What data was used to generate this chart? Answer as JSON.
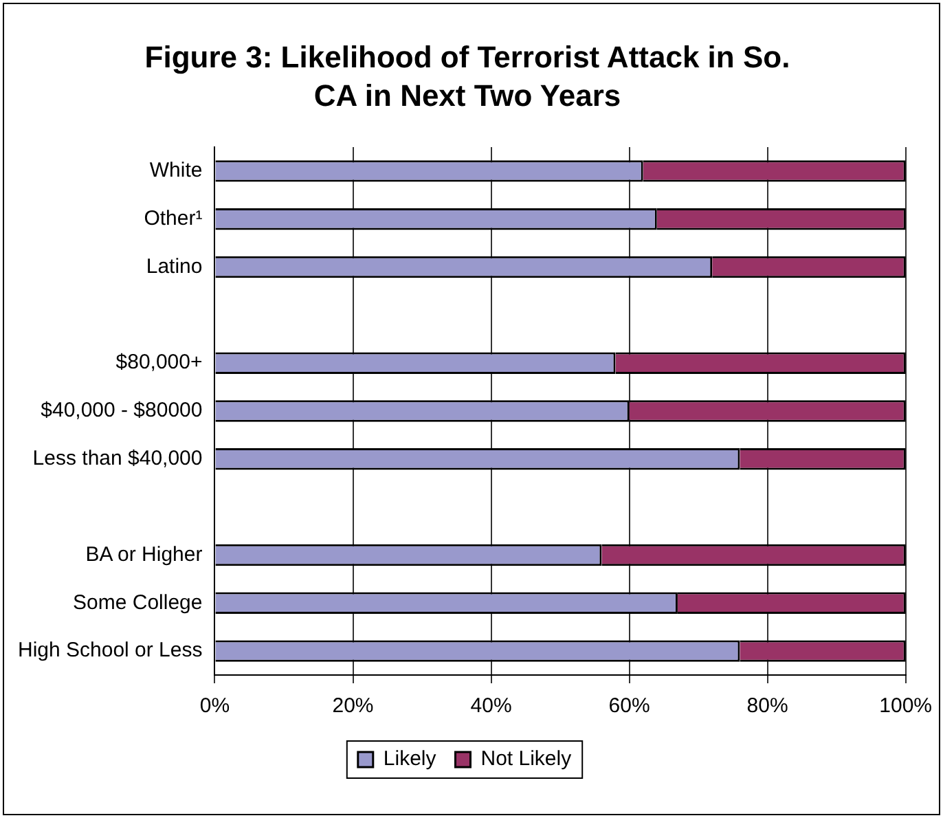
{
  "chart_data": {
    "type": "bar",
    "orientation": "horizontal",
    "stacked": true,
    "title": "Figure 3: Likelihood of Terrorist Attack in So. CA in Next Two Years",
    "categories": [
      "White",
      "Other¹",
      "Latino",
      null,
      "$80,000+",
      "$40,000 - $80000",
      "Less than $40,000",
      null,
      "BA or Higher",
      "Some College",
      "High School or Less"
    ],
    "series": [
      {
        "name": "Likely",
        "color": "#9999cc",
        "values": [
          62,
          64,
          72,
          null,
          58,
          60,
          76,
          null,
          56,
          67,
          76
        ]
      },
      {
        "name": "Not Likely",
        "color": "#993366",
        "values": [
          38,
          36,
          28,
          null,
          42,
          40,
          24,
          null,
          44,
          33,
          24
        ]
      }
    ],
    "xlim": [
      0,
      100
    ],
    "xticks": [
      {
        "value": 0,
        "label": "0%"
      },
      {
        "value": 20,
        "label": "20%"
      },
      {
        "value": 40,
        "label": "40%"
      },
      {
        "value": 60,
        "label": "60%"
      },
      {
        "value": 80,
        "label": "80%"
      },
      {
        "value": 100,
        "label": "100%"
      }
    ],
    "grid": "x",
    "legend": "bottom"
  }
}
